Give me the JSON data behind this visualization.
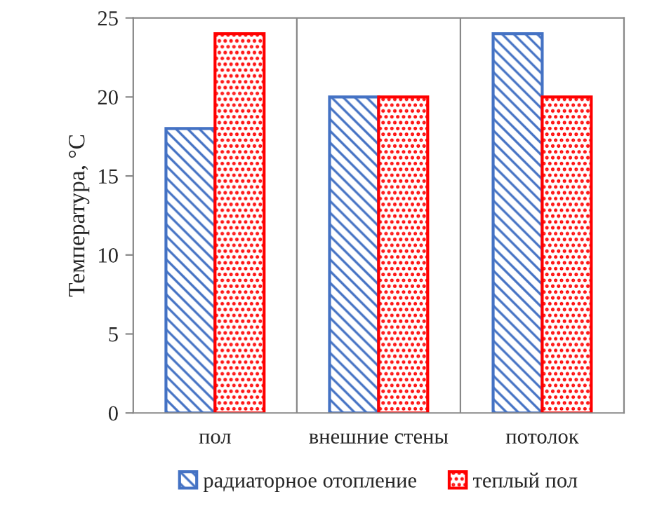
{
  "chart_data": {
    "type": "bar",
    "ylabel": "Температура, °C",
    "categories": [
      "пол",
      "внешние стены",
      "потолок"
    ],
    "series": [
      {
        "name": "радиаторное отопление",
        "color": "#4472c4",
        "values": [
          18,
          20,
          24
        ]
      },
      {
        "name": "теплый пол",
        "color": "#ff0000",
        "values": [
          24,
          20,
          20
        ]
      }
    ],
    "ylim": [
      0,
      25
    ],
    "yticks": [
      0,
      5,
      10,
      15,
      20,
      25
    ],
    "grid": "x",
    "legend": "bottom"
  }
}
